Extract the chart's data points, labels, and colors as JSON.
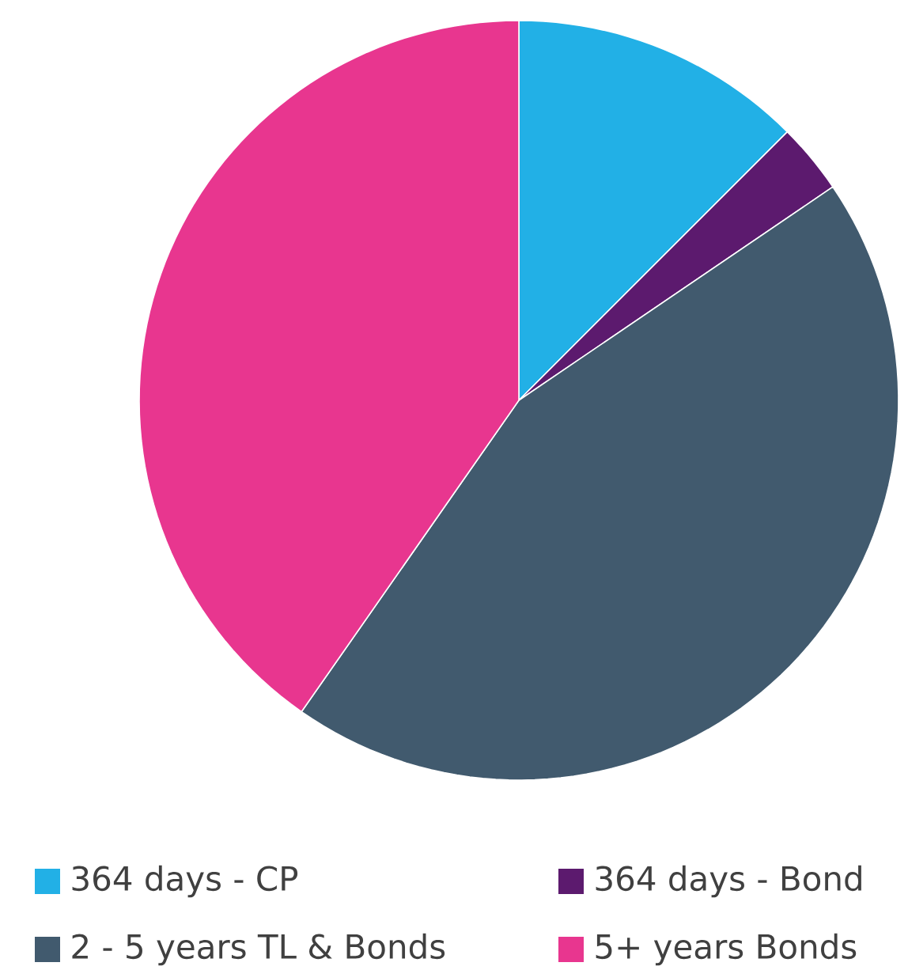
{
  "chart_data": {
    "type": "pie",
    "categories": [
      "364 days - CP",
      "364 days - Bond",
      "2 - 5 years TL & Bonds",
      "5+ years Bonds"
    ],
    "values": [
      12.5,
      3.0,
      44.2,
      40.3
    ],
    "colors": [
      "#22b0e6",
      "#5c1a6e",
      "#415a6e",
      "#e8368f"
    ],
    "legend": "bottom"
  }
}
